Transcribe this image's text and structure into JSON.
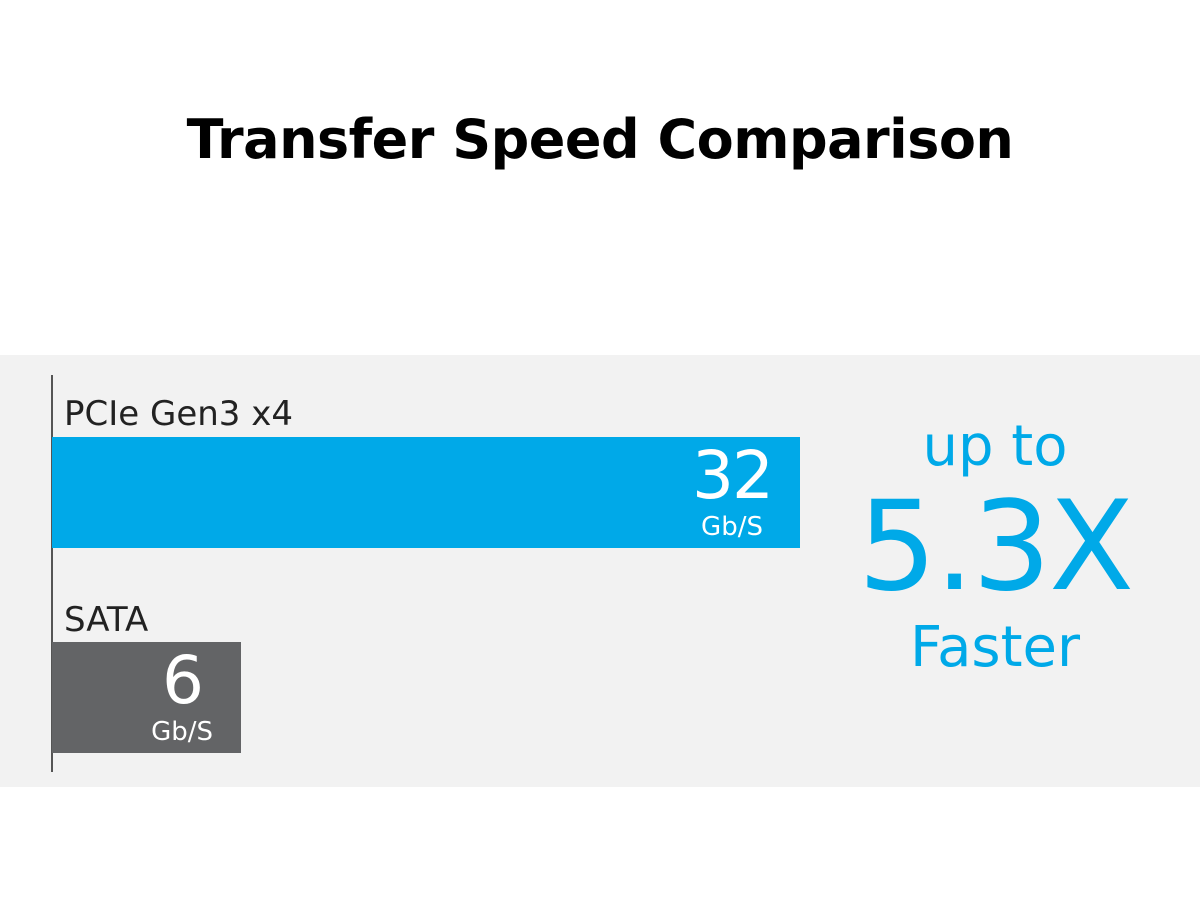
{
  "chart_data": {
    "type": "bar",
    "orientation": "horizontal",
    "title": "Transfer Speed Comparison",
    "categories": [
      "PCIe Gen3 x4",
      "SATA"
    ],
    "values": [
      32,
      6
    ],
    "value_labels": [
      "32",
      "6"
    ],
    "unit": "Gb/S",
    "colors": [
      "#00a9e8",
      "#636466"
    ],
    "grid": false,
    "callout": {
      "line1": "up to",
      "line2": "5.3X",
      "line3": "Faster",
      "color": "#00a9e8"
    }
  }
}
